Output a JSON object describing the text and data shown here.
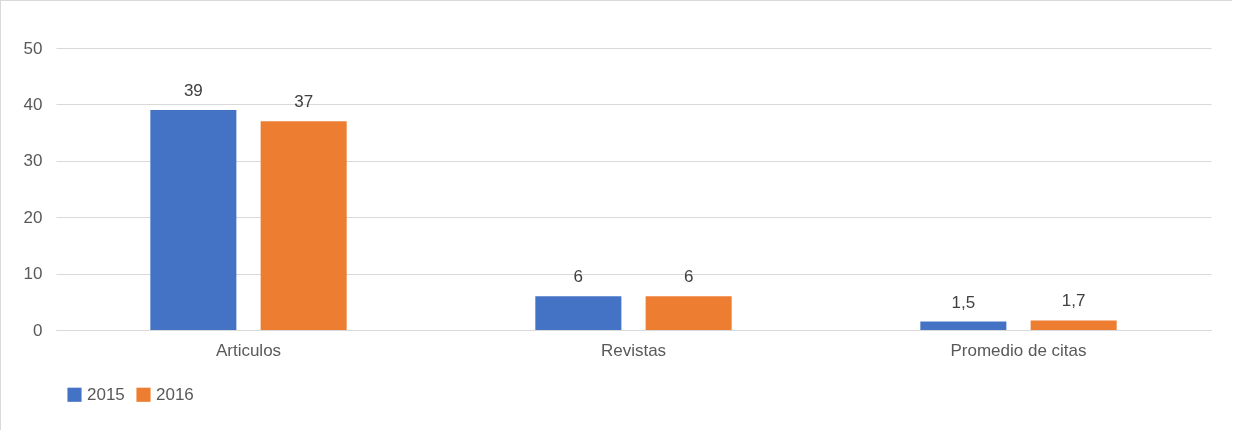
{
  "chart_data": {
    "type": "bar",
    "categories": [
      "Articulos",
      "Revistas",
      "Promedio de citas"
    ],
    "series": [
      {
        "name": "2015",
        "color": "#4472c4",
        "values": [
          39,
          6,
          1.5
        ],
        "value_labels": [
          "39",
          "6",
          "1,5"
        ]
      },
      {
        "name": "2016",
        "color": "#ed7d31",
        "values": [
          37,
          6,
          1.7
        ],
        "value_labels": [
          "37",
          "6",
          "1,7"
        ]
      }
    ],
    "ylim": [
      0,
      50
    ],
    "yticks": [
      0,
      10,
      20,
      30,
      40,
      50
    ],
    "grid": "y",
    "legend": "bottom"
  }
}
